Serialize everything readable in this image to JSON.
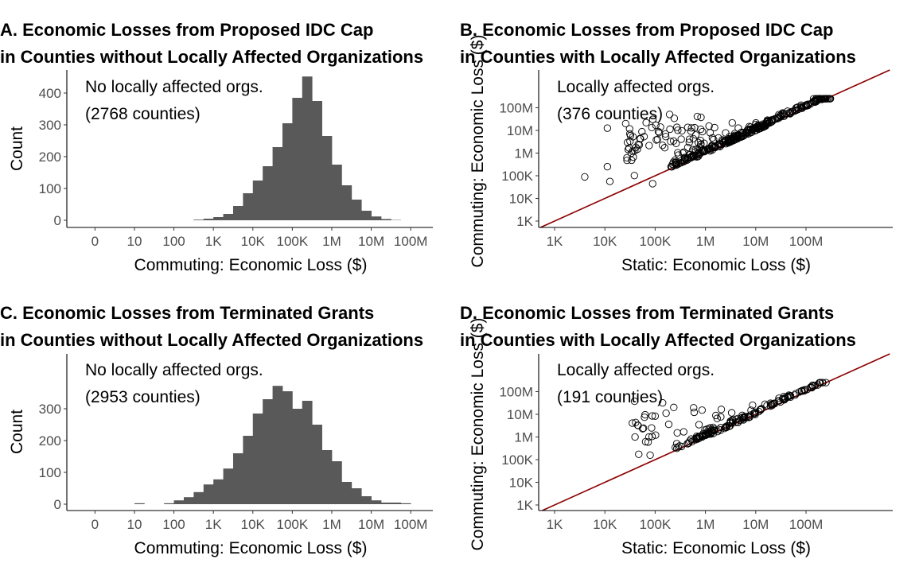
{
  "chart_data": [
    {
      "panel": "A",
      "type": "bar",
      "title_line1": "A. Economic Losses from Proposed IDC Cap",
      "title_line2": "in Counties without Locally Affected Organizations",
      "xlabel": "Commuting: Economic Loss ($)",
      "ylabel": "Count",
      "x_scale": "log10(1 + x)",
      "x_ticks": [
        "0",
        "10",
        "100",
        "1K",
        "10K",
        "100K",
        "1M",
        "10M",
        "100M"
      ],
      "y_ticks": [
        "0",
        "100",
        "200",
        "300",
        "400"
      ],
      "ylim": [
        0,
        470
      ],
      "annotation_line1": "No locally affected orgs.",
      "annotation_line2": "(2768 counties)",
      "bins_log10_start": [
        2.5,
        2.75,
        3.0,
        3.25,
        3.5,
        3.75,
        4.0,
        4.25,
        4.5,
        4.75,
        5.0,
        5.25,
        5.5,
        5.75,
        6.0,
        6.25,
        6.5,
        6.75,
        7.0,
        7.25,
        7.5
      ],
      "bin_width_log10": 0.25,
      "values": [
        2,
        5,
        10,
        20,
        45,
        85,
        125,
        170,
        230,
        305,
        385,
        452,
        375,
        265,
        175,
        110,
        65,
        30,
        12,
        4,
        1
      ]
    },
    {
      "panel": "B",
      "type": "scatter",
      "title_line1": "B. Economic Losses from Proposed IDC Cap",
      "title_line2": "in Counties with Locally Affected Organizations",
      "xlabel": "Static: Economic Loss ($)",
      "ylabel": "Commuting: Economic Loss ($)",
      "x_scale": "log10",
      "y_scale": "log10",
      "x_ticks": [
        "1K",
        "10K",
        "100K",
        "1M",
        "10M",
        "100M"
      ],
      "y_ticks": [
        "1K",
        "10K",
        "100K",
        "1M",
        "10M",
        "100M"
      ],
      "reference_line": "y = x",
      "reference_color": "#8b0000",
      "annotation_line1": "Locally affected orgs.",
      "annotation_line2": "(376 counties)",
      "n_points": 376
    },
    {
      "panel": "C",
      "type": "bar",
      "title_line1": "C. Economic Losses from Terminated Grants",
      "title_line2": "in Counties without Locally Affected Organizations",
      "xlabel": "Commuting: Economic Loss ($)",
      "ylabel": "Count",
      "x_scale": "log10(1 + x)",
      "x_ticks": [
        "0",
        "10",
        "100",
        "1K",
        "10K",
        "100K",
        "1M",
        "10M",
        "100M"
      ],
      "y_ticks": [
        "0",
        "100",
        "200",
        "300"
      ],
      "ylim": [
        0,
        385
      ],
      "annotation_line1": "No locally affected orgs.",
      "annotation_line2": "(2953 counties)",
      "bins_log10_start": [
        1.0,
        1.75,
        2.0,
        2.25,
        2.5,
        2.75,
        3.0,
        3.25,
        3.5,
        3.75,
        4.0,
        4.25,
        4.5,
        4.75,
        5.0,
        5.25,
        5.5,
        5.75,
        6.0,
        6.25,
        6.5,
        6.75,
        7.0,
        7.25,
        7.5,
        7.75
      ],
      "bin_width_log10": 0.25,
      "values": [
        3,
        3,
        12,
        22,
        38,
        62,
        78,
        112,
        160,
        215,
        285,
        330,
        372,
        355,
        300,
        325,
        250,
        170,
        135,
        70,
        50,
        25,
        12,
        5,
        5,
        3
      ]
    },
    {
      "panel": "D",
      "type": "scatter",
      "title_line1": "D. Economic Losses from Terminated Grants",
      "title_line2": "in Counties with Locally Affected Organizations",
      "xlabel": "Static: Economic Loss ($)",
      "ylabel": "Commuting: Economic Loss ($)",
      "x_scale": "log10",
      "y_scale": "log10",
      "x_ticks": [
        "1K",
        "10K",
        "100K",
        "1M",
        "10M",
        "100M"
      ],
      "y_ticks": [
        "1K",
        "10K",
        "100K",
        "1M",
        "10M",
        "100M"
      ],
      "reference_line": "y = x",
      "reference_color": "#8b0000",
      "annotation_line1": "Locally affected orgs.",
      "annotation_line2": "(191 counties)",
      "n_points": 191
    }
  ],
  "colors": {
    "bar_fill": "#595959",
    "point_stroke": "#000000",
    "reference_line": "#8b0000"
  }
}
